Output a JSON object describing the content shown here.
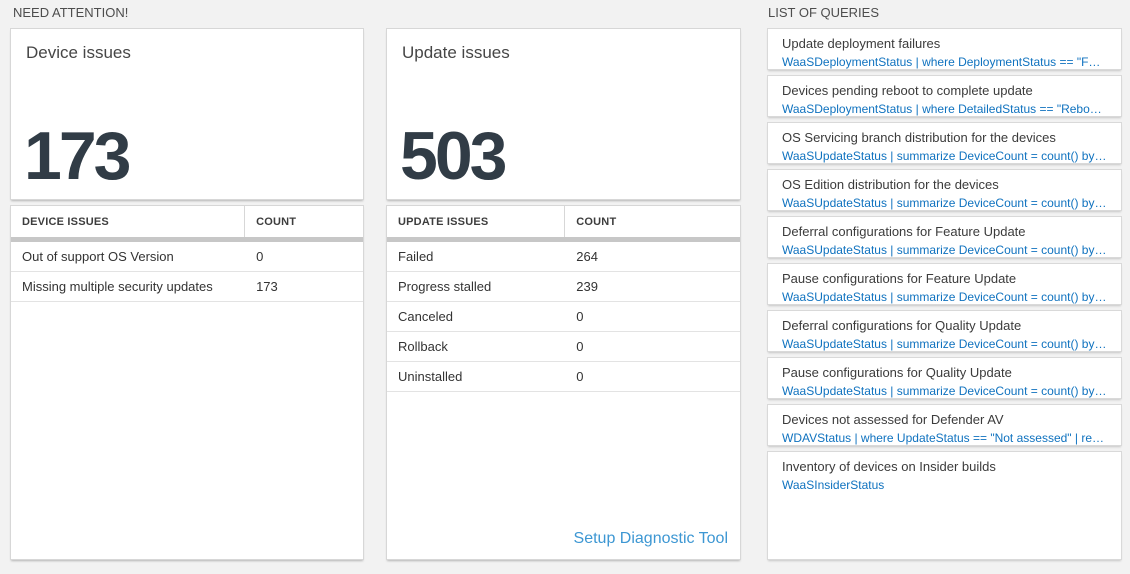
{
  "need_attention": {
    "section_title": "NEED ATTENTION!",
    "device_tile": {
      "title": "Device issues",
      "count": "173"
    },
    "device_table": {
      "headers": {
        "issue": "DEVICE ISSUES",
        "count": "COUNT"
      },
      "rows": [
        {
          "label": "Out of support OS Version",
          "count": "0"
        },
        {
          "label": "Missing multiple security updates",
          "count": "173"
        }
      ]
    },
    "update_tile": {
      "title": "Update issues",
      "count": "503"
    },
    "update_table": {
      "headers": {
        "issue": "UPDATE ISSUES",
        "count": "COUNT"
      },
      "rows": [
        {
          "label": "Failed",
          "count": "264"
        },
        {
          "label": "Progress stalled",
          "count": "239"
        },
        {
          "label": "Canceled",
          "count": "0"
        },
        {
          "label": "Rollback",
          "count": "0"
        },
        {
          "label": "Uninstalled",
          "count": "0"
        }
      ],
      "footer_link": "Setup Diagnostic Tool"
    }
  },
  "queries": {
    "section_title": "LIST OF QUERIES",
    "items": [
      {
        "title": "Update deployment failures",
        "query": "WaaSDeploymentStatus | where DeploymentStatus == \"Failed\" |..."
      },
      {
        "title": "Devices pending reboot to complete update",
        "query": "WaaSDeploymentStatus | where DetailedStatus == \"Reboot pend..."
      },
      {
        "title": "OS Servicing branch distribution for the devices",
        "query": "WaaSUpdateStatus | summarize DeviceCount = count() by OSSer..."
      },
      {
        "title": "OS Edition distribution for the devices",
        "query": "WaaSUpdateStatus | summarize DeviceCount = count() by OSEdit..."
      },
      {
        "title": "Deferral configurations for Feature Update",
        "query": "WaaSUpdateStatus | summarize DeviceCount = count() by Featur..."
      },
      {
        "title": "Pause configurations for Feature Update",
        "query": "WaaSUpdateStatus | summarize DeviceCount = count() by Featur..."
      },
      {
        "title": "Deferral configurations for Quality Update",
        "query": "WaaSUpdateStatus | summarize DeviceCount = count() by Qualit..."
      },
      {
        "title": "Pause configurations for Quality Update",
        "query": "WaaSUpdateStatus | summarize DeviceCount = count() by Qualit..."
      },
      {
        "title": "Devices not assessed for Defender AV",
        "query": "WDAVStatus | where UpdateStatus == \"Not assessed\" | render ta..."
      },
      {
        "title": "Inventory of devices on Insider builds",
        "query": "WaaSInsiderStatus"
      }
    ]
  },
  "colors": {
    "page_background": "#f2f2f2",
    "tile_background": "#ffffff",
    "tile_border": "#d7d7d7",
    "big_number": "#313c46",
    "query_link_blue": "#0f72bf",
    "setup_link_blue": "#3d97d3",
    "gray_bar": "#c7c7c7"
  }
}
